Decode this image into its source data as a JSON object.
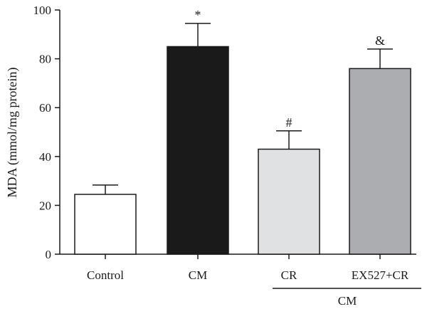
{
  "chart_data": {
    "type": "bar",
    "title": "",
    "xlabel": "",
    "ylabel": "MDA (mmol/mg protein)",
    "ylim": [
      0,
      100
    ],
    "yticks": [
      0,
      20,
      40,
      60,
      80,
      100
    ],
    "grid": false,
    "categories": [
      "Control",
      "CM",
      "CR",
      "EX527+CR"
    ],
    "values": [
      24.5,
      85,
      43,
      76
    ],
    "errors": [
      3.8,
      9.5,
      7.5,
      8
    ],
    "annotations": [
      "",
      "*",
      "#",
      "&"
    ],
    "colors": [
      "#ffffff",
      "#1a1a1a",
      "#e0e1e3",
      "#abadb1"
    ],
    "group_label": {
      "text": "CM",
      "spans": [
        "CR",
        "EX527+CR"
      ]
    }
  }
}
